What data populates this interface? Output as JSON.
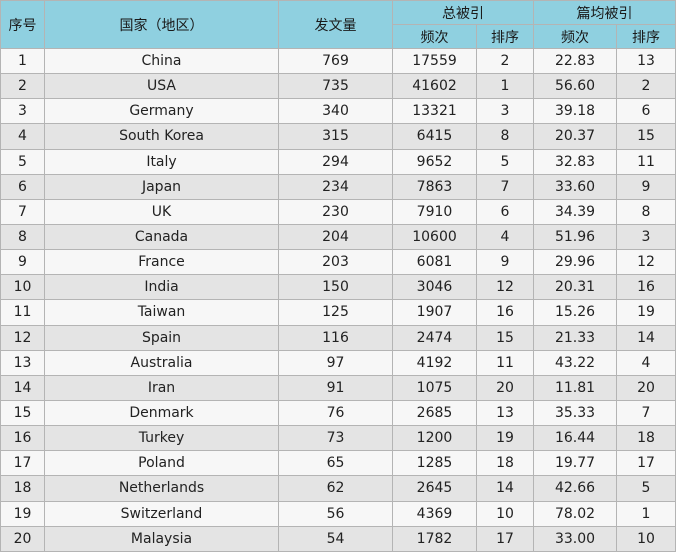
{
  "headers": {
    "no": "序号",
    "country": "国家（地区）",
    "papers": "发文量",
    "total_citations": "总被引",
    "avg_citations": "篇均被引",
    "freq": "频次",
    "rank": "排序"
  },
  "rows": [
    {
      "no": "1",
      "country": "China",
      "papers": "769",
      "tc": "17559",
      "tc_rank": "2",
      "avg": "22.83",
      "avg_rank": "13"
    },
    {
      "no": "2",
      "country": "USA",
      "papers": "735",
      "tc": "41602",
      "tc_rank": "1",
      "avg": "56.60",
      "avg_rank": "2"
    },
    {
      "no": "3",
      "country": "Germany",
      "papers": "340",
      "tc": "13321",
      "tc_rank": "3",
      "avg": "39.18",
      "avg_rank": "6"
    },
    {
      "no": "4",
      "country": "South Korea",
      "papers": "315",
      "tc": "6415",
      "tc_rank": "8",
      "avg": "20.37",
      "avg_rank": "15"
    },
    {
      "no": "5",
      "country": "Italy",
      "papers": "294",
      "tc": "9652",
      "tc_rank": "5",
      "avg": "32.83",
      "avg_rank": "11"
    },
    {
      "no": "6",
      "country": "Japan",
      "papers": "234",
      "tc": "7863",
      "tc_rank": "7",
      "avg": "33.60",
      "avg_rank": "9"
    },
    {
      "no": "7",
      "country": "UK",
      "papers": "230",
      "tc": "7910",
      "tc_rank": "6",
      "avg": "34.39",
      "avg_rank": "8"
    },
    {
      "no": "8",
      "country": "Canada",
      "papers": "204",
      "tc": "10600",
      "tc_rank": "4",
      "avg": "51.96",
      "avg_rank": "3"
    },
    {
      "no": "9",
      "country": "France",
      "papers": "203",
      "tc": "6081",
      "tc_rank": "9",
      "avg": "29.96",
      "avg_rank": "12"
    },
    {
      "no": "10",
      "country": "India",
      "papers": "150",
      "tc": "3046",
      "tc_rank": "12",
      "avg": "20.31",
      "avg_rank": "16"
    },
    {
      "no": "11",
      "country": "Taiwan",
      "papers": "125",
      "tc": "1907",
      "tc_rank": "16",
      "avg": "15.26",
      "avg_rank": "19"
    },
    {
      "no": "12",
      "country": "Spain",
      "papers": "116",
      "tc": "2474",
      "tc_rank": "15",
      "avg": "21.33",
      "avg_rank": "14"
    },
    {
      "no": "13",
      "country": "Australia",
      "papers": "97",
      "tc": "4192",
      "tc_rank": "11",
      "avg": "43.22",
      "avg_rank": "4"
    },
    {
      "no": "14",
      "country": "Iran",
      "papers": "91",
      "tc": "1075",
      "tc_rank": "20",
      "avg": "11.81",
      "avg_rank": "20"
    },
    {
      "no": "15",
      "country": "Denmark",
      "papers": "76",
      "tc": "2685",
      "tc_rank": "13",
      "avg": "35.33",
      "avg_rank": "7"
    },
    {
      "no": "16",
      "country": "Turkey",
      "papers": "73",
      "tc": "1200",
      "tc_rank": "19",
      "avg": "16.44",
      "avg_rank": "18"
    },
    {
      "no": "17",
      "country": "Poland",
      "papers": "65",
      "tc": "1285",
      "tc_rank": "18",
      "avg": "19.77",
      "avg_rank": "17"
    },
    {
      "no": "18",
      "country": "Netherlands",
      "papers": "62",
      "tc": "2645",
      "tc_rank": "14",
      "avg": "42.66",
      "avg_rank": "5"
    },
    {
      "no": "19",
      "country": "Switzerland",
      "papers": "56",
      "tc": "4369",
      "tc_rank": "10",
      "avg": "78.02",
      "avg_rank": "1"
    },
    {
      "no": "20",
      "country": "Malaysia",
      "papers": "54",
      "tc": "1782",
      "tc_rank": "17",
      "avg": "33.00",
      "avg_rank": "10"
    }
  ],
  "colors": {
    "header_bg": "#8fd0e0",
    "row_light": "#f7f7f7",
    "row_dark": "#e4e4e4",
    "border": "#b4b4b4"
  }
}
